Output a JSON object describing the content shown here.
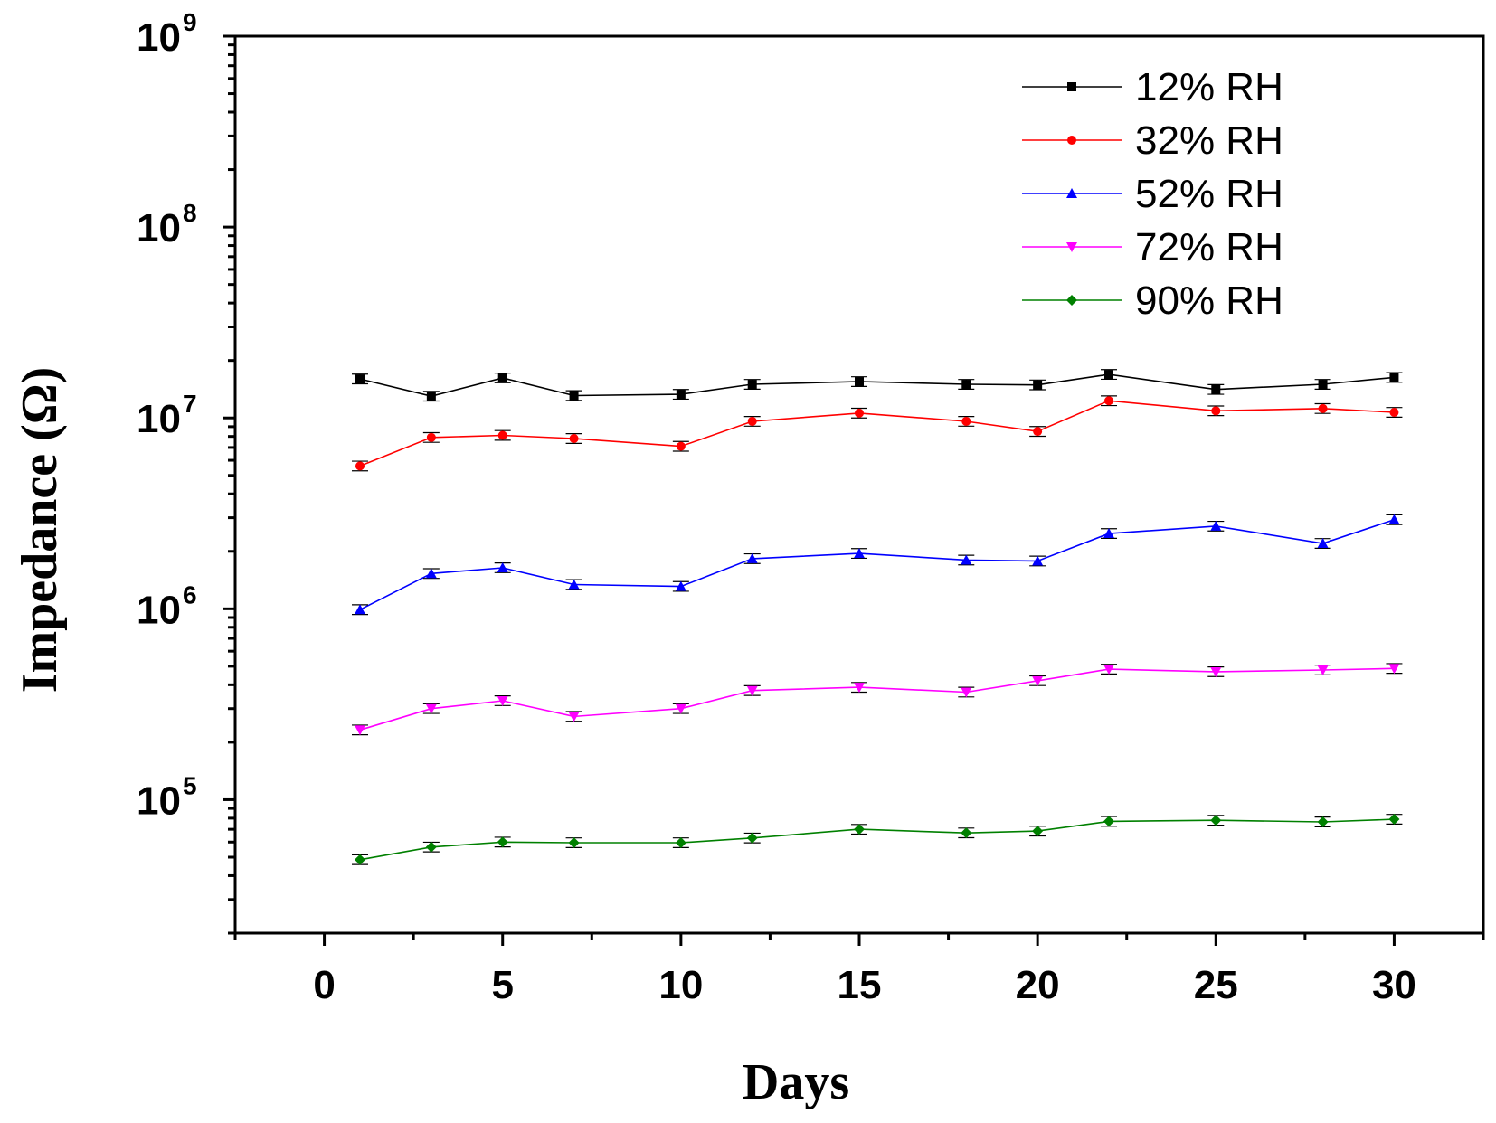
{
  "chart_data": {
    "type": "line",
    "xlabel": "Days",
    "ylabel": "Impedance  (Ω)",
    "yscale": "log",
    "xlim": [
      -2.5,
      32.5
    ],
    "ylim": [
      20000,
      1000000000
    ],
    "xticks": [
      0,
      5,
      10,
      15,
      20,
      25,
      30
    ],
    "yticks": [
      {
        "value": 100000,
        "base": "10",
        "exp": "5"
      },
      {
        "value": 1000000,
        "base": "10",
        "exp": "6"
      },
      {
        "value": 10000000,
        "base": "10",
        "exp": "7"
      },
      {
        "value": 100000000,
        "base": "10",
        "exp": "8"
      },
      {
        "value": 1000000000,
        "base": "10",
        "exp": "9"
      }
    ],
    "legend_position": "top-right",
    "x": [
      1,
      3,
      5,
      7,
      10,
      12,
      15,
      18,
      20,
      22,
      25,
      28,
      30
    ],
    "series": [
      {
        "name": "12% RH",
        "color": "#000000",
        "marker": "square",
        "values": [
          16000000,
          13000000,
          16200000,
          13100000,
          13300000,
          15000000,
          15500000,
          15000000,
          14900000,
          16900000,
          14100000,
          15000000,
          16300000
        ]
      },
      {
        "name": "32% RH",
        "color": "#ff0000",
        "marker": "circle",
        "values": [
          5600000,
          7900000,
          8100000,
          7800000,
          7100000,
          9600000,
          10600000,
          9600000,
          8500000,
          12300000,
          10900000,
          11200000,
          10700000
        ]
      },
      {
        "name": "52% RH",
        "color": "#0000ff",
        "marker": "triangle-up",
        "values": [
          990000,
          1530000,
          1640000,
          1340000,
          1310000,
          1830000,
          1950000,
          1800000,
          1780000,
          2480000,
          2710000,
          2200000,
          2930000
        ]
      },
      {
        "name": "72% RH",
        "color": "#ff00ff",
        "marker": "triangle-down",
        "values": [
          232000,
          300000,
          330000,
          273000,
          300000,
          373000,
          388000,
          366000,
          420000,
          483000,
          468000,
          478000,
          487000
        ]
      },
      {
        "name": "90% RH",
        "color": "#008000",
        "marker": "diamond",
        "values": [
          48500,
          56500,
          60000,
          59500,
          59500,
          63000,
          70000,
          67000,
          68500,
          77000,
          78000,
          76500,
          79000
        ]
      }
    ]
  }
}
